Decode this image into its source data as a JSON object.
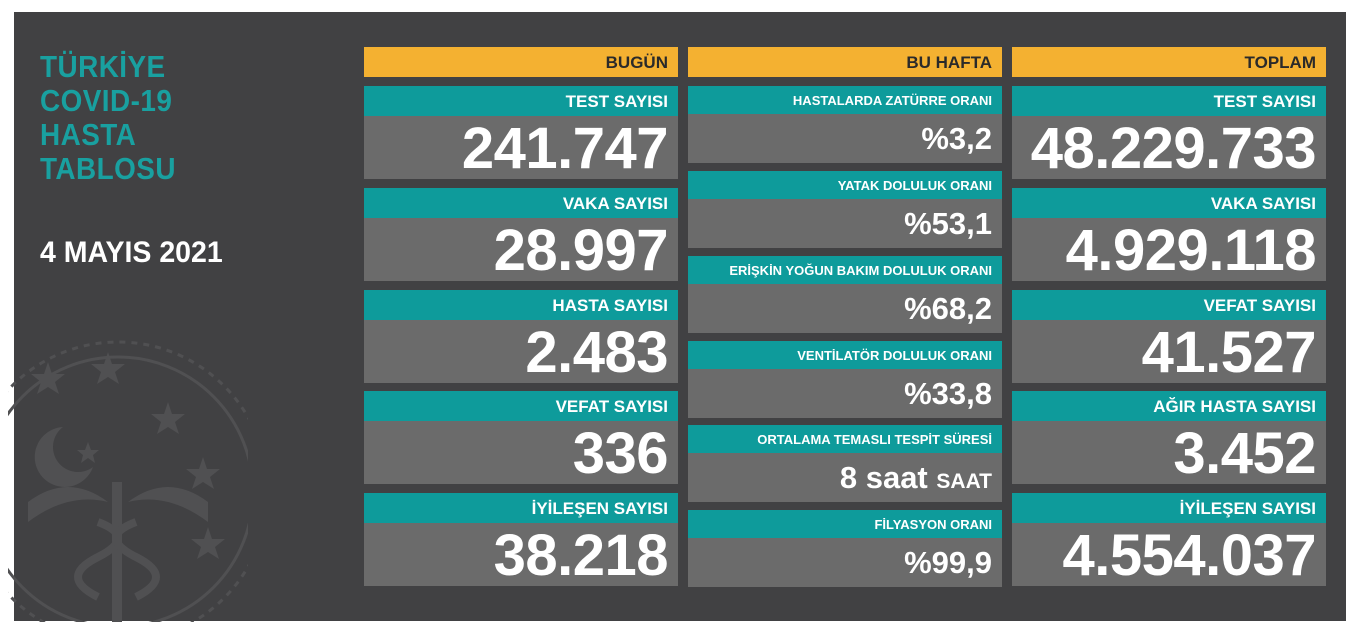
{
  "title_lines": [
    "TÜRKİYE",
    "COVID-19",
    "HASTA",
    "TABLOSU"
  ],
  "date": "4 MAYIS 2021",
  "colors": {
    "panel": "#414143",
    "header": "#f4b131",
    "label": "#0e9b9b",
    "value_bg": "#6b6b6b",
    "title": "#19a0a0"
  },
  "icons": {
    "emblem": "ministry-of-health-emblem-icon"
  },
  "today": {
    "header": "BUGÜN",
    "items": [
      {
        "label": "TEST SAYISI",
        "value": "241.747"
      },
      {
        "label": "VAKA SAYISI",
        "value": "28.997"
      },
      {
        "label": "HASTA SAYISI",
        "value": "2.483"
      },
      {
        "label": "VEFAT SAYISI",
        "value": "336"
      },
      {
        "label": "İYİLEŞEN SAYISI",
        "value": "38.218"
      }
    ]
  },
  "week": {
    "header": "BU HAFTA",
    "items": [
      {
        "label": "HASTALARDA ZATÜRRE ORANI",
        "value": "%3,2",
        "unit": ""
      },
      {
        "label": "YATAK DOLULUK ORANI",
        "value": "%53,1",
        "unit": ""
      },
      {
        "label": "ERİŞKİN YOĞUN BAKIM DOLULUK ORANI",
        "value": "%68,2",
        "unit": ""
      },
      {
        "label": "VENTİLATÖR DOLULUK ORANI",
        "value": "%33,8",
        "unit": ""
      },
      {
        "label": "ORTALAMA TEMASLI TESPİT SÜRESİ",
        "value": "8 saat",
        "unit": "SAAT"
      },
      {
        "label": "FİLYASYON ORANI",
        "value": "%99,9",
        "unit": ""
      }
    ]
  },
  "total": {
    "header": "TOPLAM",
    "items": [
      {
        "label": "TEST SAYISI",
        "value": "48.229.733"
      },
      {
        "label": "VAKA SAYISI",
        "value": "4.929.118"
      },
      {
        "label": "VEFAT SAYISI",
        "value": "41.527"
      },
      {
        "label": "AĞIR HASTA SAYISI",
        "value": "3.452"
      },
      {
        "label": "İYİLEŞEN SAYISI",
        "value": "4.554.037"
      }
    ]
  }
}
